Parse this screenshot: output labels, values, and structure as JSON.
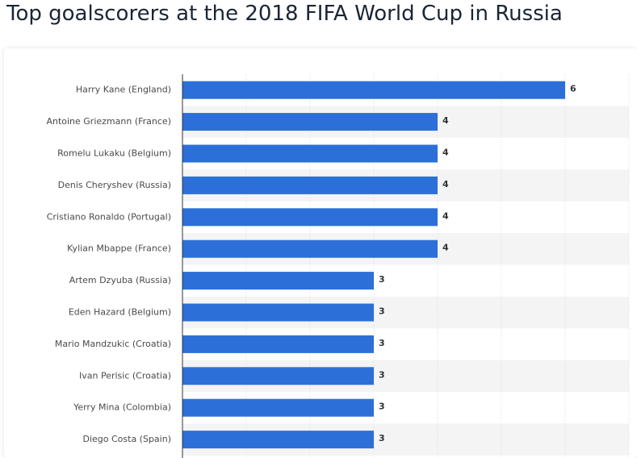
{
  "chart_data": {
    "type": "bar",
    "orientation": "horizontal",
    "title": "Top goalscorers at the 2018 FIFA World Cup in Russia",
    "categories": [
      "Harry Kane (England)",
      "Antoine Griezmann (France)",
      "Romelu Lukaku (Belgium)",
      "Denis Cheryshev (Russia)",
      "Cristiano Ronaldo (Portugal)",
      "Kylian Mbappe (France)",
      "Artem Dzyuba (Russia)",
      "Eden Hazard (Belgium)",
      "Mario Mandzukic (Croatia)",
      "Ivan Perisic (Croatia)",
      "Yerry Mina (Colombia)",
      "Diego Costa (Spain)"
    ],
    "values": [
      6,
      4,
      4,
      4,
      4,
      4,
      3,
      3,
      3,
      3,
      3,
      3
    ],
    "color": "#2c6fd8",
    "xlim": [
      0,
      7
    ],
    "xticks": [
      0,
      1,
      2,
      3,
      4,
      5,
      6,
      7
    ],
    "grid": true
  }
}
